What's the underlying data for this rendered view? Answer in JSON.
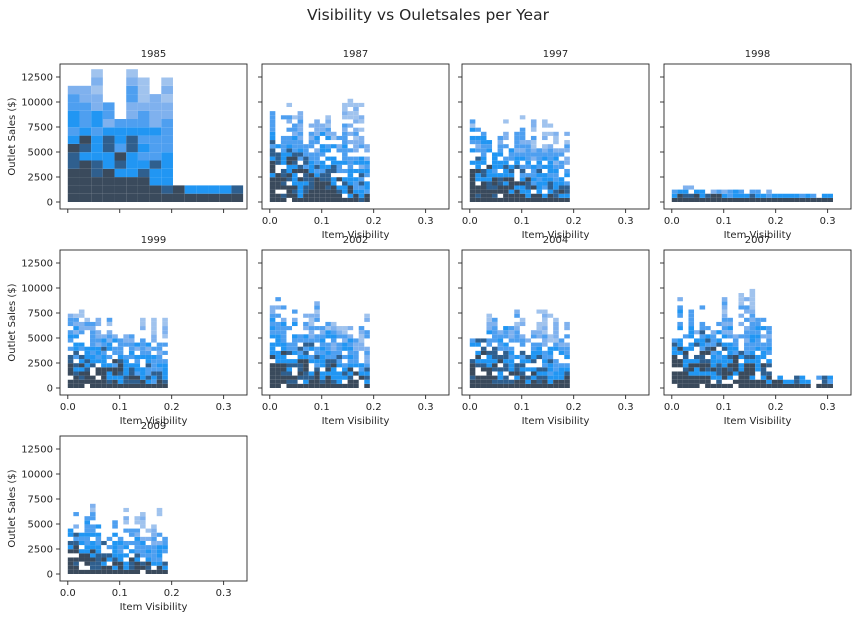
{
  "title": "Visibility vs Ouletsales per Year",
  "colors": {
    "light": "#a0c3ee",
    "mid": "#7fb1ee",
    "base": "#4e9ff0",
    "strong": "#2196f3",
    "dark": "#2f5f8e",
    "darkest": "#3a4a5c",
    "axis": "#262626"
  },
  "chart_data": {
    "type": "heatmap",
    "kind": "2d-histogram facet grid",
    "xlabel": "Item Visibility",
    "ylabel": "Outlet Sales ($)",
    "xlim": [
      -0.015,
      0.345
    ],
    "ylim": [
      -700,
      13800
    ],
    "x_ticks": [
      0.0,
      0.1,
      0.2,
      0.3
    ],
    "x_tick_labels": [
      "0.0",
      "0.1",
      "0.2",
      "0.3"
    ],
    "y_ticks": [
      0,
      2500,
      5000,
      7500,
      10000,
      12500
    ],
    "y_tick_labels": [
      "0",
      "2500",
      "5000",
      "7500",
      "10000",
      "12500"
    ],
    "bin_width_visibility": 0.0107,
    "bin_height_sales": 413,
    "panels": [
      {
        "year": "1985",
        "max_visibility": 0.328,
        "max_sales": 13100,
        "coarse_bins": true
      },
      {
        "year": "1987",
        "max_visibility": 0.19,
        "max_sales": 10250
      },
      {
        "year": "1997",
        "max_visibility": 0.19,
        "max_sales": 8800
      },
      {
        "year": "1998",
        "max_visibility": 0.31,
        "max_sales": 1350,
        "flat": true
      },
      {
        "year": "1999",
        "max_visibility": 0.19,
        "max_sales": 7700
      },
      {
        "year": "2002",
        "max_visibility": 0.19,
        "max_sales": 8800
      },
      {
        "year": "2004",
        "max_visibility": 0.19,
        "max_sales": 8300
      },
      {
        "year": "2007",
        "max_visibility": 0.31,
        "max_sales": 9600
      },
      {
        "year": "2009",
        "max_visibility": 0.19,
        "max_sales": 6700
      }
    ]
  }
}
